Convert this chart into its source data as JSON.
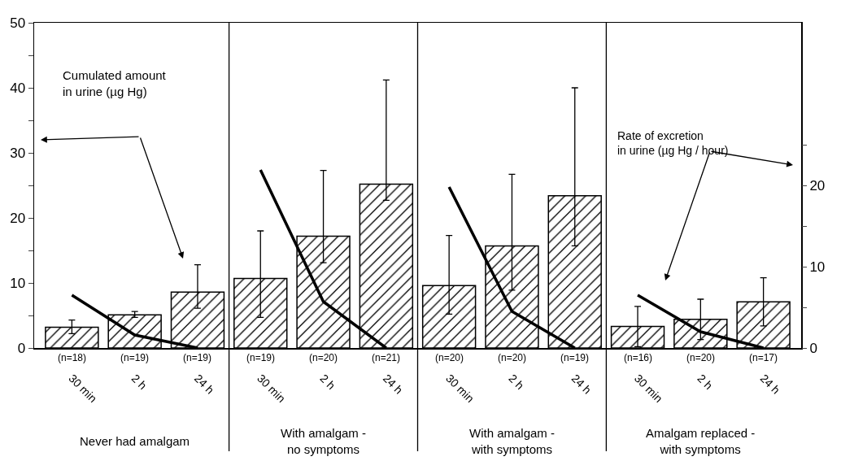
{
  "chart_data": {
    "type": "bar",
    "ylabel": "Cumulated amount\nin urine (µg Hg)",
    "y2label": "Rate of excretion\nin urine (µg Hg / hour)",
    "categories": [
      "30 min",
      "2 h",
      "24 h",
      "30 min",
      "2 h",
      "24 h",
      "30 min",
      "2 h",
      "24 h",
      "30 min",
      "2 h",
      "24 h"
    ],
    "annotations": [
      "(n=18)",
      "(n=19)",
      "(n=19)",
      "(n=19)",
      "(n=20)",
      "(n=21)",
      "(n=20)",
      "(n=20)",
      "(n=19)",
      "(n=16)",
      "(n=20)",
      "(n=17)",
      "Never had amalgam",
      "With amalgam -\nno symptoms",
      "With amalgam -\nwith symptoms",
      "Amalgam replaced -\nwith symptoms"
    ],
    "ylim": [
      0,
      50
    ],
    "yticks": [
      0,
      {
        "value": 5,
        "label": null
      },
      10,
      {
        "value": 15,
        "label": null
      },
      20,
      {
        "value": 25,
        "label": null
      },
      30,
      {
        "value": 35,
        "label": null
      },
      40,
      {
        "value": 45,
        "label": null
      },
      50
    ],
    "y2lim": [
      0,
      40
    ],
    "y2ticks": [
      0,
      {
        "value": 5,
        "label": null
      },
      10,
      {
        "value": 15,
        "label": null
      },
      20,
      {
        "value": 25,
        "label": null
      }
    ],
    "series": [
      {
        "color": "#000000",
        "values": [
          3.2,
          5.1,
          8.6,
          10.7,
          17.2,
          25.2,
          9.6,
          15.7,
          23.4,
          3.3,
          4.4,
          7.1
        ],
        "errors": [
          [
            2.2,
            4.3
          ],
          [
            4.7,
            5.6
          ],
          [
            6.1,
            12.8
          ],
          [
            4.7,
            18.0
          ],
          [
            13.1,
            27.3
          ],
          [
            22.7,
            41.2
          ],
          [
            5.2,
            17.3
          ],
          [
            8.9,
            26.7
          ],
          [
            15.7,
            40.0
          ],
          3.1,
          3.1,
          3.7
        ]
      },
      {
        "type": "line",
        "axis": "y2",
        "color": "#000000",
        "values": [
          6.5,
          1.6,
          0,
          null,
          null,
          null,
          null,
          null,
          null,
          null,
          null,
          null
        ]
      },
      {
        "type": "line",
        "axis": "y2",
        "color": "#000000",
        "values": [
          null,
          null,
          null,
          21.9,
          5.7,
          0,
          null,
          null,
          null,
          null,
          null,
          null
        ]
      },
      {
        "type": "line",
        "axis": "y2",
        "color": "#000000",
        "values": [
          null,
          null,
          null,
          null,
          null,
          null,
          19.8,
          4.5,
          0,
          null,
          null,
          null
        ]
      },
      {
        "type": "line",
        "axis": "y2",
        "color": "#000000",
        "values": [
          null,
          null,
          null,
          null,
          null,
          null,
          null,
          null,
          null,
          6.5,
          2.0,
          0
        ]
      }
    ]
  }
}
